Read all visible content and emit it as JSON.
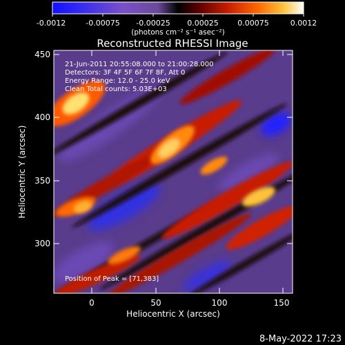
{
  "colorbar": {
    "tick_labels": [
      "-0.0012",
      "-0.00075",
      "-0.00025",
      "0.00025",
      "0.00075",
      "0.0012"
    ],
    "units_label": "(photons cm⁻² s⁻¹ asec⁻²)",
    "colors": [
      "#1010ff",
      "#6a44d8",
      "#8a58b8",
      "#000000",
      "#6a0000",
      "#c81e00",
      "#ff6a00",
      "#ffc23a",
      "#ffffff"
    ]
  },
  "plot": {
    "title": "Reconstructed RHESSI Image",
    "info_lines": [
      "21-Jun-2011 20:55:08.000 to 21:00:28.000",
      "Detectors: 3F 4F 5F 6F 7F 8F, Att 0",
      "Energy Range: 12.0 - 25.0 keV",
      "Clean     Total counts: 5.03E+03"
    ],
    "peak_label": "Position of Peak = [71,383]",
    "xlabel": "Heliocentric X (arcsec)",
    "ylabel": "Heliocentric Y (arcsec)",
    "x_ticks": [
      "0",
      "50",
      "100",
      "150"
    ],
    "y_ticks": [
      "300",
      "350",
      "400",
      "450"
    ]
  },
  "footer": {
    "date": "8-May-2022 17:23"
  }
}
